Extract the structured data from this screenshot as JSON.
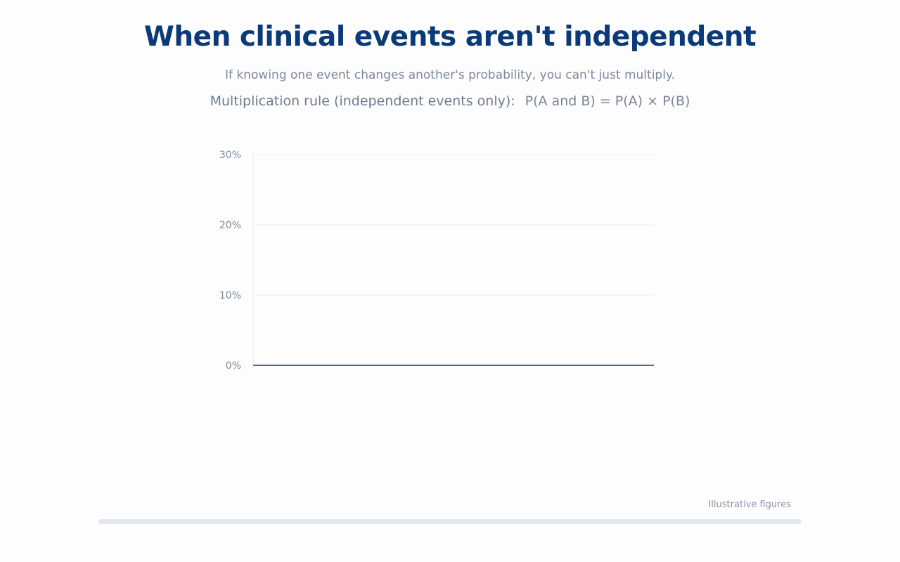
{
  "header": {
    "title": "When clinical events aren't independent",
    "subtitle": "If knowing one event changes another's probability, you can't just multiply.",
    "rule_label": "Multiplication rule (independent events only):",
    "rule_formula": "P(A and B) = P(A) × P(B)"
  },
  "chart_data": {
    "type": "bar",
    "categories": [],
    "series": [],
    "ylim": [
      0,
      30
    ],
    "yticks": [
      0,
      10,
      20,
      30
    ],
    "ytick_labels": [
      "0%",
      "10%",
      "20%",
      "30%"
    ],
    "grid": true
  },
  "footer": {
    "note": "Illustrative figures",
    "progress": 0
  },
  "colors": {
    "title": "#0b3a78",
    "text_muted": "#7d889b",
    "axis": "#5d6b82",
    "grid": "#e9ecf1",
    "track": "#e3e8ef"
  }
}
